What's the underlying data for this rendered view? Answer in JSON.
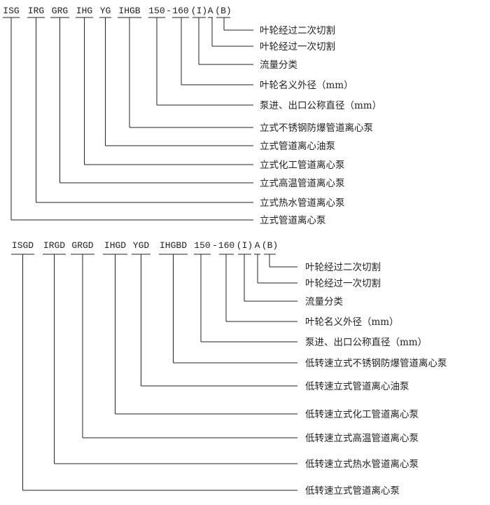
{
  "diagrams": [
    {
      "codes": [
        "ISG",
        "IRG",
        "GRG",
        "IHG",
        "YG",
        "IHGB",
        "150",
        "-",
        "160",
        "(I)",
        "A",
        "(B)"
      ],
      "labels": [
        {
          "code": "(B)",
          "text": "叶轮经过二次切割"
        },
        {
          "code": "A",
          "text": "叶轮经过一次切割"
        },
        {
          "code": "(I)",
          "text": "流量分类"
        },
        {
          "code": "160",
          "text": "叶轮名义外径（mm）"
        },
        {
          "code": "150",
          "text": "泵进、出口公称直径（mm）"
        },
        {
          "code": "IHGB",
          "text": "立式不锈钢防爆管道离心泵"
        },
        {
          "code": "YG",
          "text": "立式管道离心油泵"
        },
        {
          "code": "IHG",
          "text": "立式化工管道离心泵"
        },
        {
          "code": "GRG",
          "text": "立式高温管道离心泵"
        },
        {
          "code": "IRG",
          "text": "立式热水管道离心泵"
        },
        {
          "code": "ISG",
          "text": "立式管道离心泵"
        }
      ]
    },
    {
      "codes": [
        "ISGD",
        "IRGD",
        "GRGD",
        "IHGD",
        "YGD",
        "IHGBD",
        "150",
        "-",
        "160",
        "(I)",
        "A",
        "(B)"
      ],
      "labels": [
        {
          "code": "(B)",
          "text": "叶轮经过二次切割"
        },
        {
          "code": "A",
          "text": "叶轮经过一次切割"
        },
        {
          "code": "(I)",
          "text": "流量分类"
        },
        {
          "code": "160",
          "text": "叶轮名义外径（mm）"
        },
        {
          "code": "150",
          "text": "泵进、出口公称直径（mm）"
        },
        {
          "code": "IHGBD",
          "text": "低转速立式不锈钢防爆管道离心泵"
        },
        {
          "code": "YGD",
          "text": "低转速立式管道离心油泵"
        },
        {
          "code": "IHGD",
          "text": "低转速立式化工管道离心泵"
        },
        {
          "code": "GRGD",
          "text": "低转速立式高温管道离心泵"
        },
        {
          "code": "IRGD",
          "text": "低转速立式热水管道离心泵"
        },
        {
          "code": "ISGD",
          "text": "低转速立式管道离心泵"
        }
      ]
    }
  ]
}
